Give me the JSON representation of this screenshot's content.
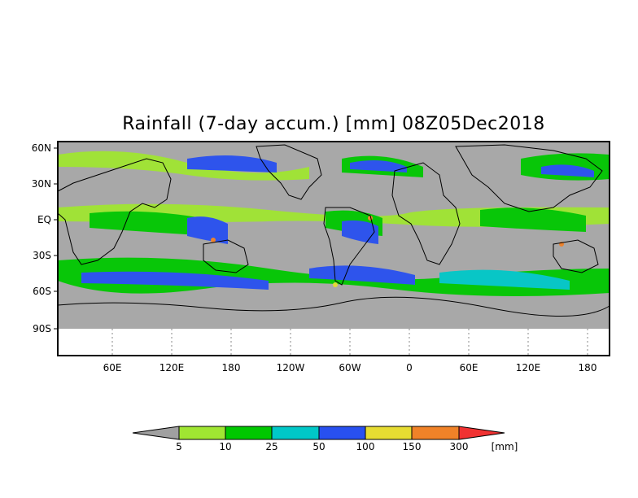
{
  "title": "Rainfall (7-day accum.) [mm] 08Z05Dec2018",
  "map": {
    "lat_labels": [
      "60N",
      "30N",
      "EQ",
      "30S",
      "60S",
      "90S"
    ],
    "lon_labels": [
      "60E",
      "120E",
      "180",
      "120W",
      "60W",
      "0",
      "60E",
      "120E",
      "180"
    ],
    "land_color": "#a8a8a8",
    "frame_color": "#000000"
  },
  "colorbar": {
    "levels": [
      "5",
      "10",
      "25",
      "50",
      "100",
      "150",
      "300"
    ],
    "unit": "[mm]",
    "colors": [
      "#a0a0a0",
      "#a0e632",
      "#00c800",
      "#00c8c8",
      "#2850f0",
      "#e6dc32",
      "#f08228",
      "#f03232"
    ]
  }
}
